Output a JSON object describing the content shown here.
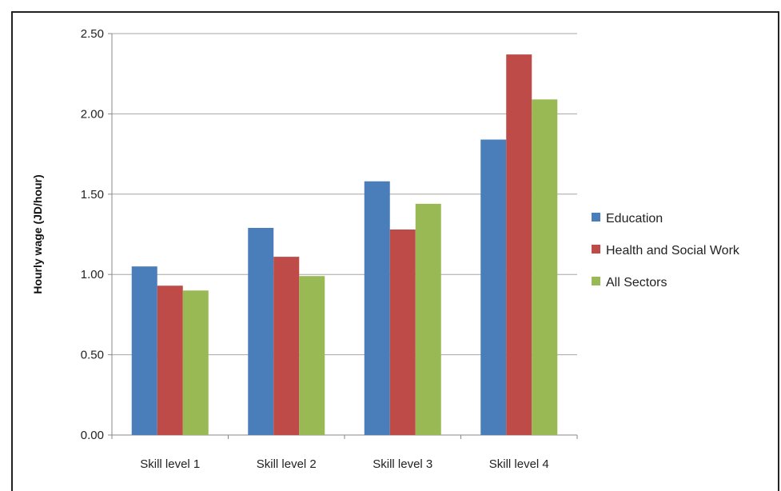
{
  "chart_data": {
    "type": "bar",
    "title": "",
    "xlabel": "",
    "ylabel": "Hourly wage (JD/hour)",
    "ylim": [
      0,
      2.5
    ],
    "yticks": [
      "0.00",
      "0.50",
      "1.00",
      "1.50",
      "2.00",
      "2.50"
    ],
    "categories": [
      "Skill level 1",
      "Skill level 2",
      "Skill level 3",
      "Skill level 4"
    ],
    "series": [
      {
        "name": "Education",
        "color": "#4a7ebb",
        "values": [
          1.05,
          1.29,
          1.58,
          1.84
        ]
      },
      {
        "name": "Health and Social Work",
        "color": "#be4b48",
        "values": [
          0.93,
          1.11,
          1.28,
          2.37
        ]
      },
      {
        "name": "All Sectors",
        "color": "#98b954",
        "values": [
          0.9,
          0.99,
          1.44,
          2.09
        ]
      }
    ],
    "grid": true,
    "legend_position": "right"
  }
}
